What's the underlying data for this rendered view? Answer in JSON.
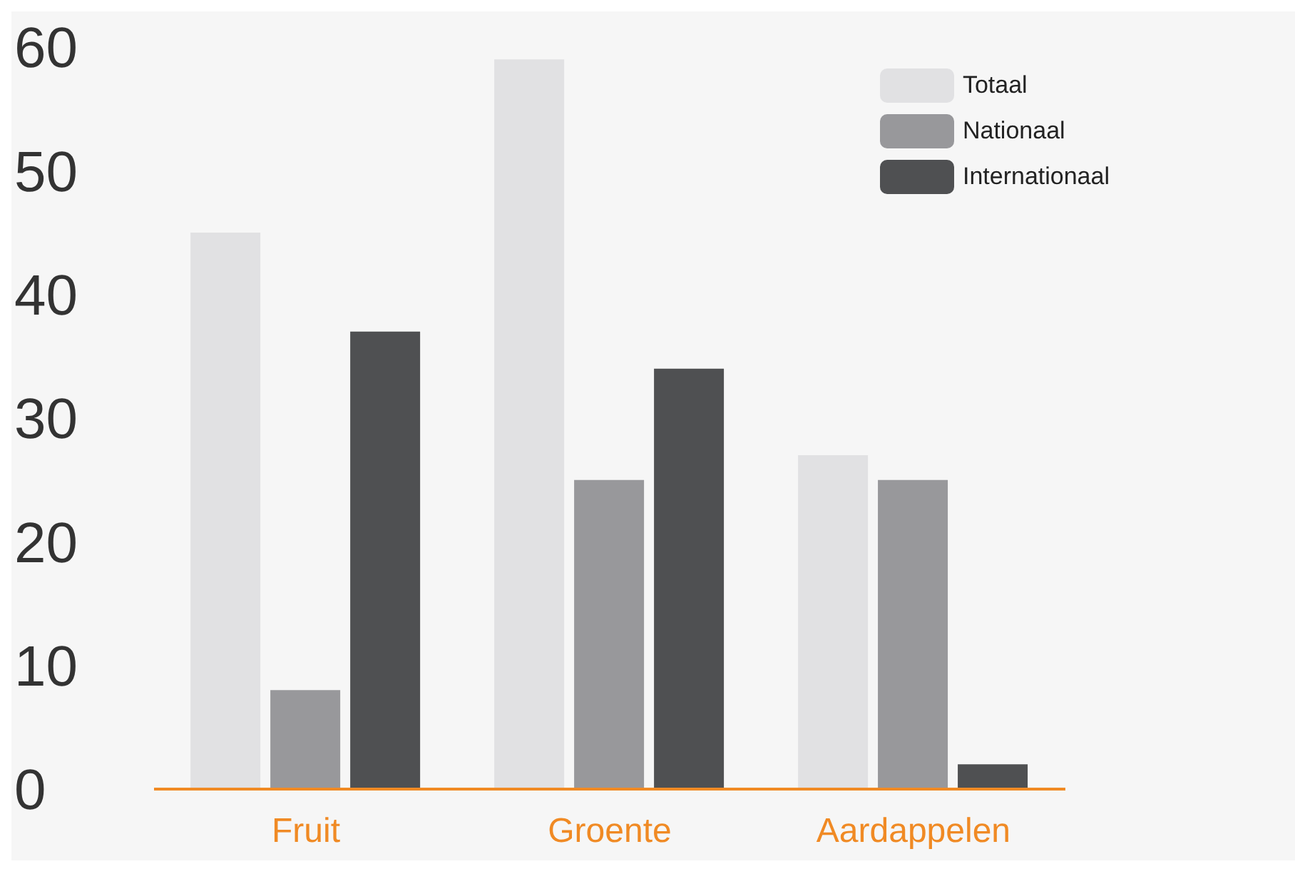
{
  "chart_data": {
    "type": "bar",
    "categories": [
      "Fruit",
      "Groente",
      "Aardappelen"
    ],
    "series": [
      {
        "name": "Totaal",
        "color": "#e1e1e3",
        "values": [
          45,
          59,
          27
        ]
      },
      {
        "name": "Nationaal",
        "color": "#98989b",
        "values": [
          8,
          25,
          25
        ]
      },
      {
        "name": "Internationaal",
        "color": "#4f5052",
        "values": [
          37,
          34,
          2
        ]
      }
    ],
    "ylim": [
      0,
      60
    ],
    "yticks": [
      0,
      10,
      20,
      30,
      40,
      50,
      60
    ],
    "grid": false,
    "legend": "top right"
  }
}
